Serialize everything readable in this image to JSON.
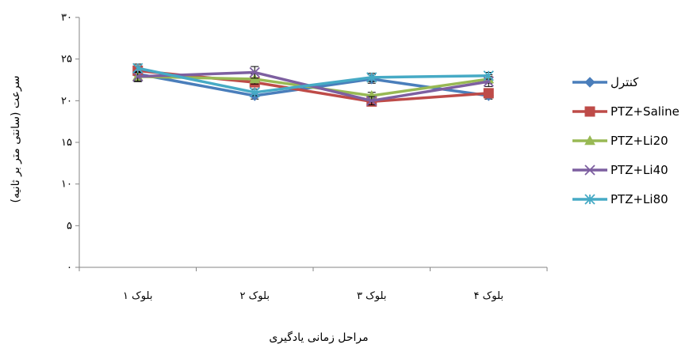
{
  "chart_data": {
    "type": "line",
    "categories": [
      "بلوک ۱",
      "بلوک ۲",
      "بلوک ۳",
      "بلوک ۴"
    ],
    "xlabel": "مراحل زمانی یادگیری",
    "ylabel": "سرعت (سانتی متر بر ثانیه)",
    "ylim": [
      0,
      30
    ],
    "yticks": [
      0,
      5,
      10,
      15,
      20,
      25,
      30
    ],
    "ytick_labels": [
      "۰",
      "۵",
      "۱۰",
      "۱۵",
      "۲۰",
      "۲۵",
      "۳۰"
    ],
    "grid": false,
    "legend_position": "right",
    "series": [
      {
        "name": "کنترل",
        "color": "#4a7ebb",
        "marker": "diamond",
        "values": [
          23.2,
          20.6,
          22.6,
          20.6
        ],
        "errors": [
          0.8,
          0.4,
          0.5,
          0.4
        ]
      },
      {
        "name": "PTZ+Saline",
        "color": "#be4b48",
        "marker": "square",
        "values": [
          23.6,
          22.2,
          19.9,
          20.9
        ],
        "errors": [
          0.6,
          0.5,
          0.4,
          0.5
        ]
      },
      {
        "name": "PTZ+Li20",
        "color": "#98b954",
        "marker": "triangle",
        "values": [
          22.9,
          22.6,
          20.6,
          22.6
        ],
        "errors": [
          0.6,
          0.6,
          0.4,
          0.5
        ]
      },
      {
        "name": "PTZ+Li40",
        "color": "#7d5fa0",
        "marker": "x",
        "values": [
          22.9,
          23.4,
          20.0,
          22.3
        ],
        "errors": [
          0.6,
          0.7,
          0.5,
          0.6
        ]
      },
      {
        "name": "PTZ+Li80",
        "color": "#46aac5",
        "marker": "star",
        "values": [
          23.9,
          21.0,
          22.8,
          23.0
        ],
        "errors": [
          0.5,
          0.4,
          0.5,
          0.4
        ]
      }
    ]
  }
}
